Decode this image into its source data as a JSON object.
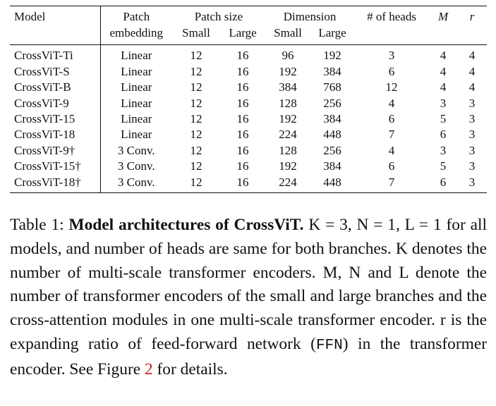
{
  "table": {
    "header_row1": {
      "model": "Model",
      "patch_embedding_top": "Patch",
      "patch_size": "Patch size",
      "dimension": "Dimension",
      "heads": "# of heads",
      "m": "M",
      "r": "r"
    },
    "header_row2": {
      "patch_embedding_bottom": "embedding",
      "ps_small": "Small",
      "ps_large": "Large",
      "dim_small": "Small",
      "dim_large": "Large"
    },
    "rows": [
      {
        "model": "CrossViT-Ti",
        "embed": "Linear",
        "ps_small": "12",
        "ps_large": "16",
        "dim_small": "96",
        "dim_large": "192",
        "heads": "3",
        "m": "4",
        "r": "4"
      },
      {
        "model": "CrossViT-S",
        "embed": "Linear",
        "ps_small": "12",
        "ps_large": "16",
        "dim_small": "192",
        "dim_large": "384",
        "heads": "6",
        "m": "4",
        "r": "4"
      },
      {
        "model": "CrossViT-B",
        "embed": "Linear",
        "ps_small": "12",
        "ps_large": "16",
        "dim_small": "384",
        "dim_large": "768",
        "heads": "12",
        "m": "4",
        "r": "4"
      },
      {
        "model": "CrossViT-9",
        "embed": "Linear",
        "ps_small": "12",
        "ps_large": "16",
        "dim_small": "128",
        "dim_large": "256",
        "heads": "4",
        "m": "3",
        "r": "3"
      },
      {
        "model": "CrossViT-15",
        "embed": "Linear",
        "ps_small": "12",
        "ps_large": "16",
        "dim_small": "192",
        "dim_large": "384",
        "heads": "6",
        "m": "5",
        "r": "3"
      },
      {
        "model": "CrossViT-18",
        "embed": "Linear",
        "ps_small": "12",
        "ps_large": "16",
        "dim_small": "224",
        "dim_large": "448",
        "heads": "7",
        "m": "6",
        "r": "3"
      },
      {
        "model": "CrossViT-9†",
        "embed": "3 Conv.",
        "ps_small": "12",
        "ps_large": "16",
        "dim_small": "128",
        "dim_large": "256",
        "heads": "4",
        "m": "3",
        "r": "3"
      },
      {
        "model": "CrossViT-15†",
        "embed": "3 Conv.",
        "ps_small": "12",
        "ps_large": "16",
        "dim_small": "192",
        "dim_large": "384",
        "heads": "6",
        "m": "5",
        "r": "3"
      },
      {
        "model": "CrossViT-18†",
        "embed": "3 Conv.",
        "ps_small": "12",
        "ps_large": "16",
        "dim_small": "224",
        "dim_large": "448",
        "heads": "7",
        "m": "6",
        "r": "3"
      }
    ]
  },
  "caption": {
    "label": "Table 1: ",
    "title": "Model architectures of CrossViT.",
    "s1": " K = 3, N = 1, L = 1 for all models, and number of heads are same for both branches.  ",
    "s2": "K denotes the number of multi-scale transformer encoders. ",
    "s3": "M, N and L denote the number of transformer encoders of the small and large branches and the cross-attention modules in one multi-scale transformer encoder. ",
    "s4": "r is the expanding ratio of feed-forward network (",
    "ffn": "FFN",
    "s5": ") in the transformer encoder. See Figure ",
    "figure_ref": "2",
    "s6": " for details."
  },
  "colors": {
    "text": "#111111",
    "reference_link": "#d02020"
  }
}
